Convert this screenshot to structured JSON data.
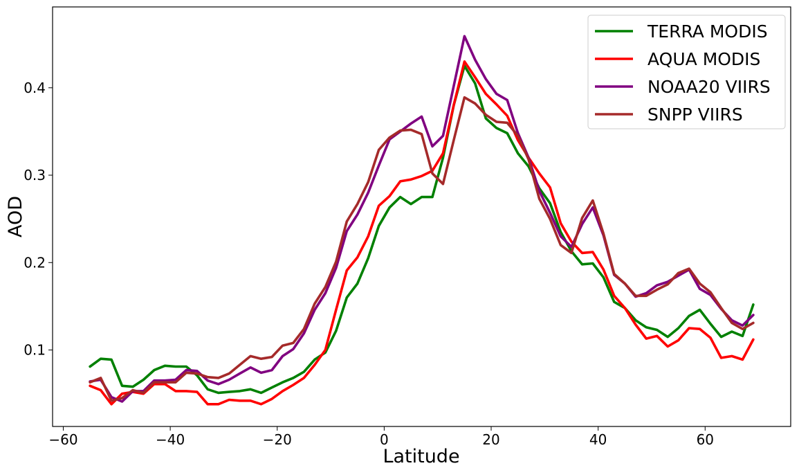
{
  "chart_data": {
    "type": "line",
    "title": "",
    "xlabel": "Latitude",
    "ylabel": "AOD",
    "xlim": [
      -62,
      76
    ],
    "ylim": [
      0.0125,
      0.4925
    ],
    "xticks": [
      -60,
      -40,
      -20,
      0,
      20,
      40,
      60
    ],
    "xtick_labels": [
      "−60",
      "−40",
      "−20",
      "0",
      "20",
      "40",
      "60"
    ],
    "yticks": [
      0.1,
      0.2,
      0.3,
      0.4
    ],
    "ytick_labels": [
      "0.1",
      "0.2",
      "0.3",
      "0.4"
    ],
    "grid": false,
    "legend_position": "top-right",
    "x": [
      -55,
      -53,
      -51,
      -49,
      -47,
      -45,
      -43,
      -41,
      -39,
      -37,
      -35,
      -33,
      -31,
      -29,
      -27,
      -25,
      -23,
      -21,
      -19,
      -17,
      -15,
      -13,
      -11,
      -9,
      -7,
      -5,
      -3,
      -1,
      1,
      3,
      5,
      7,
      9,
      11,
      13,
      15,
      17,
      19,
      21,
      23,
      25,
      27,
      29,
      31,
      33,
      35,
      37,
      39,
      41,
      43,
      45,
      47,
      49,
      51,
      53,
      55,
      57,
      59,
      61,
      63,
      65,
      67,
      69
    ],
    "series": [
      {
        "name": "TERRA MODIS",
        "color": "#008000",
        "values": [
          0.081,
          0.09,
          0.089,
          0.059,
          0.058,
          0.066,
          0.077,
          0.082,
          0.081,
          0.081,
          0.071,
          0.055,
          0.051,
          0.052,
          0.053,
          0.055,
          0.051,
          0.057,
          0.063,
          0.068,
          0.075,
          0.089,
          0.097,
          0.122,
          0.16,
          0.176,
          0.205,
          0.242,
          0.263,
          0.275,
          0.267,
          0.275,
          0.275,
          0.32,
          0.38,
          0.425,
          0.405,
          0.365,
          0.354,
          0.348,
          0.325,
          0.31,
          0.285,
          0.268,
          0.235,
          0.213,
          0.198,
          0.199,
          0.183,
          0.155,
          0.148,
          0.134,
          0.126,
          0.123,
          0.115,
          0.125,
          0.139,
          0.146,
          0.13,
          0.115,
          0.121,
          0.116,
          0.152
        ]
      },
      {
        "name": "AQUA MODIS",
        "color": "#ff0000",
        "values": [
          0.059,
          0.054,
          0.038,
          0.05,
          0.052,
          0.05,
          0.061,
          0.061,
          0.053,
          0.053,
          0.052,
          0.038,
          0.038,
          0.043,
          0.042,
          0.042,
          0.038,
          0.044,
          0.053,
          0.06,
          0.068,
          0.083,
          0.1,
          0.146,
          0.191,
          0.206,
          0.23,
          0.265,
          0.276,
          0.293,
          0.295,
          0.299,
          0.305,
          0.325,
          0.38,
          0.43,
          0.412,
          0.393,
          0.381,
          0.368,
          0.34,
          0.32,
          0.302,
          0.286,
          0.245,
          0.224,
          0.211,
          0.212,
          0.192,
          0.162,
          0.148,
          0.129,
          0.113,
          0.116,
          0.104,
          0.111,
          0.125,
          0.124,
          0.114,
          0.091,
          0.093,
          0.089,
          0.112
        ]
      },
      {
        "name": "NOAA20 VIIRS",
        "color": "#800080",
        "values": [
          0.064,
          0.066,
          0.046,
          0.041,
          0.053,
          0.053,
          0.065,
          0.065,
          0.066,
          0.077,
          0.076,
          0.065,
          0.061,
          0.066,
          0.073,
          0.08,
          0.074,
          0.077,
          0.093,
          0.101,
          0.119,
          0.146,
          0.165,
          0.194,
          0.236,
          0.255,
          0.28,
          0.311,
          0.341,
          0.35,
          0.359,
          0.367,
          0.333,
          0.345,
          0.402,
          0.459,
          0.432,
          0.41,
          0.393,
          0.386,
          0.348,
          0.32,
          0.282,
          0.257,
          0.23,
          0.218,
          0.244,
          0.263,
          0.231,
          0.186,
          0.176,
          0.161,
          0.165,
          0.174,
          0.178,
          0.185,
          0.192,
          0.17,
          0.163,
          0.147,
          0.134,
          0.128,
          0.14
        ]
      },
      {
        "name": "SNPP VIIRS",
        "color": "#a52a2a",
        "values": [
          0.063,
          0.068,
          0.042,
          0.045,
          0.054,
          0.051,
          0.063,
          0.063,
          0.063,
          0.074,
          0.073,
          0.069,
          0.068,
          0.073,
          0.083,
          0.093,
          0.09,
          0.092,
          0.105,
          0.108,
          0.124,
          0.153,
          0.172,
          0.201,
          0.247,
          0.267,
          0.292,
          0.329,
          0.343,
          0.351,
          0.352,
          0.347,
          0.302,
          0.29,
          0.34,
          0.389,
          0.382,
          0.369,
          0.361,
          0.36,
          0.345,
          0.318,
          0.273,
          0.25,
          0.22,
          0.211,
          0.251,
          0.271,
          0.233,
          0.187,
          0.176,
          0.162,
          0.162,
          0.169,
          0.175,
          0.188,
          0.193,
          0.176,
          0.166,
          0.148,
          0.131,
          0.124,
          0.131
        ]
      }
    ]
  }
}
